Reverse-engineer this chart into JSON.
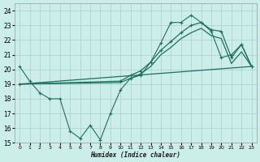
{
  "xlabel": "Humidex (Indice chaleur)",
  "bg_color": "#cceee8",
  "grid_color": "#aacccc",
  "line_color": "#1e7060",
  "xlim": [
    -0.5,
    23.5
  ],
  "ylim": [
    15,
    24.5
  ],
  "yticks": [
    15,
    16,
    17,
    18,
    19,
    20,
    21,
    22,
    23,
    24
  ],
  "xticks": [
    0,
    1,
    2,
    3,
    4,
    5,
    6,
    7,
    8,
    9,
    10,
    11,
    12,
    13,
    14,
    15,
    16,
    17,
    18,
    19,
    20,
    21,
    22,
    23
  ],
  "line1_x": [
    0,
    1,
    2,
    3,
    4,
    5,
    6,
    7,
    8,
    9,
    10,
    11,
    12,
    13,
    14,
    15,
    16,
    17,
    18,
    19,
    20,
    21,
    22,
    23
  ],
  "line1_y": [
    20.2,
    19.2,
    18.4,
    18.0,
    18.0,
    15.8,
    15.3,
    16.2,
    15.2,
    17.0,
    18.6,
    19.4,
    19.6,
    20.5,
    21.8,
    23.2,
    23.2,
    23.7,
    23.2,
    22.6,
    20.8,
    21.0,
    21.7,
    20.2
  ],
  "line2_x": [
    0,
    23
  ],
  "line2_y": [
    19.0,
    20.2
  ],
  "line3_x": [
    0,
    10,
    11,
    12,
    13,
    14,
    15,
    16,
    17,
    18,
    19,
    20,
    21,
    22,
    23
  ],
  "line3_y": [
    19.0,
    19.2,
    19.6,
    19.9,
    20.5,
    21.3,
    21.9,
    22.5,
    23.0,
    23.2,
    22.7,
    22.6,
    20.8,
    21.7,
    20.2
  ],
  "line4_x": [
    0,
    10,
    11,
    12,
    13,
    14,
    15,
    16,
    17,
    18,
    19,
    20,
    21,
    22,
    23
  ],
  "line4_y": [
    19.0,
    19.1,
    19.4,
    19.7,
    20.2,
    21.0,
    21.5,
    22.1,
    22.5,
    22.8,
    22.3,
    22.1,
    20.4,
    21.2,
    20.2
  ]
}
